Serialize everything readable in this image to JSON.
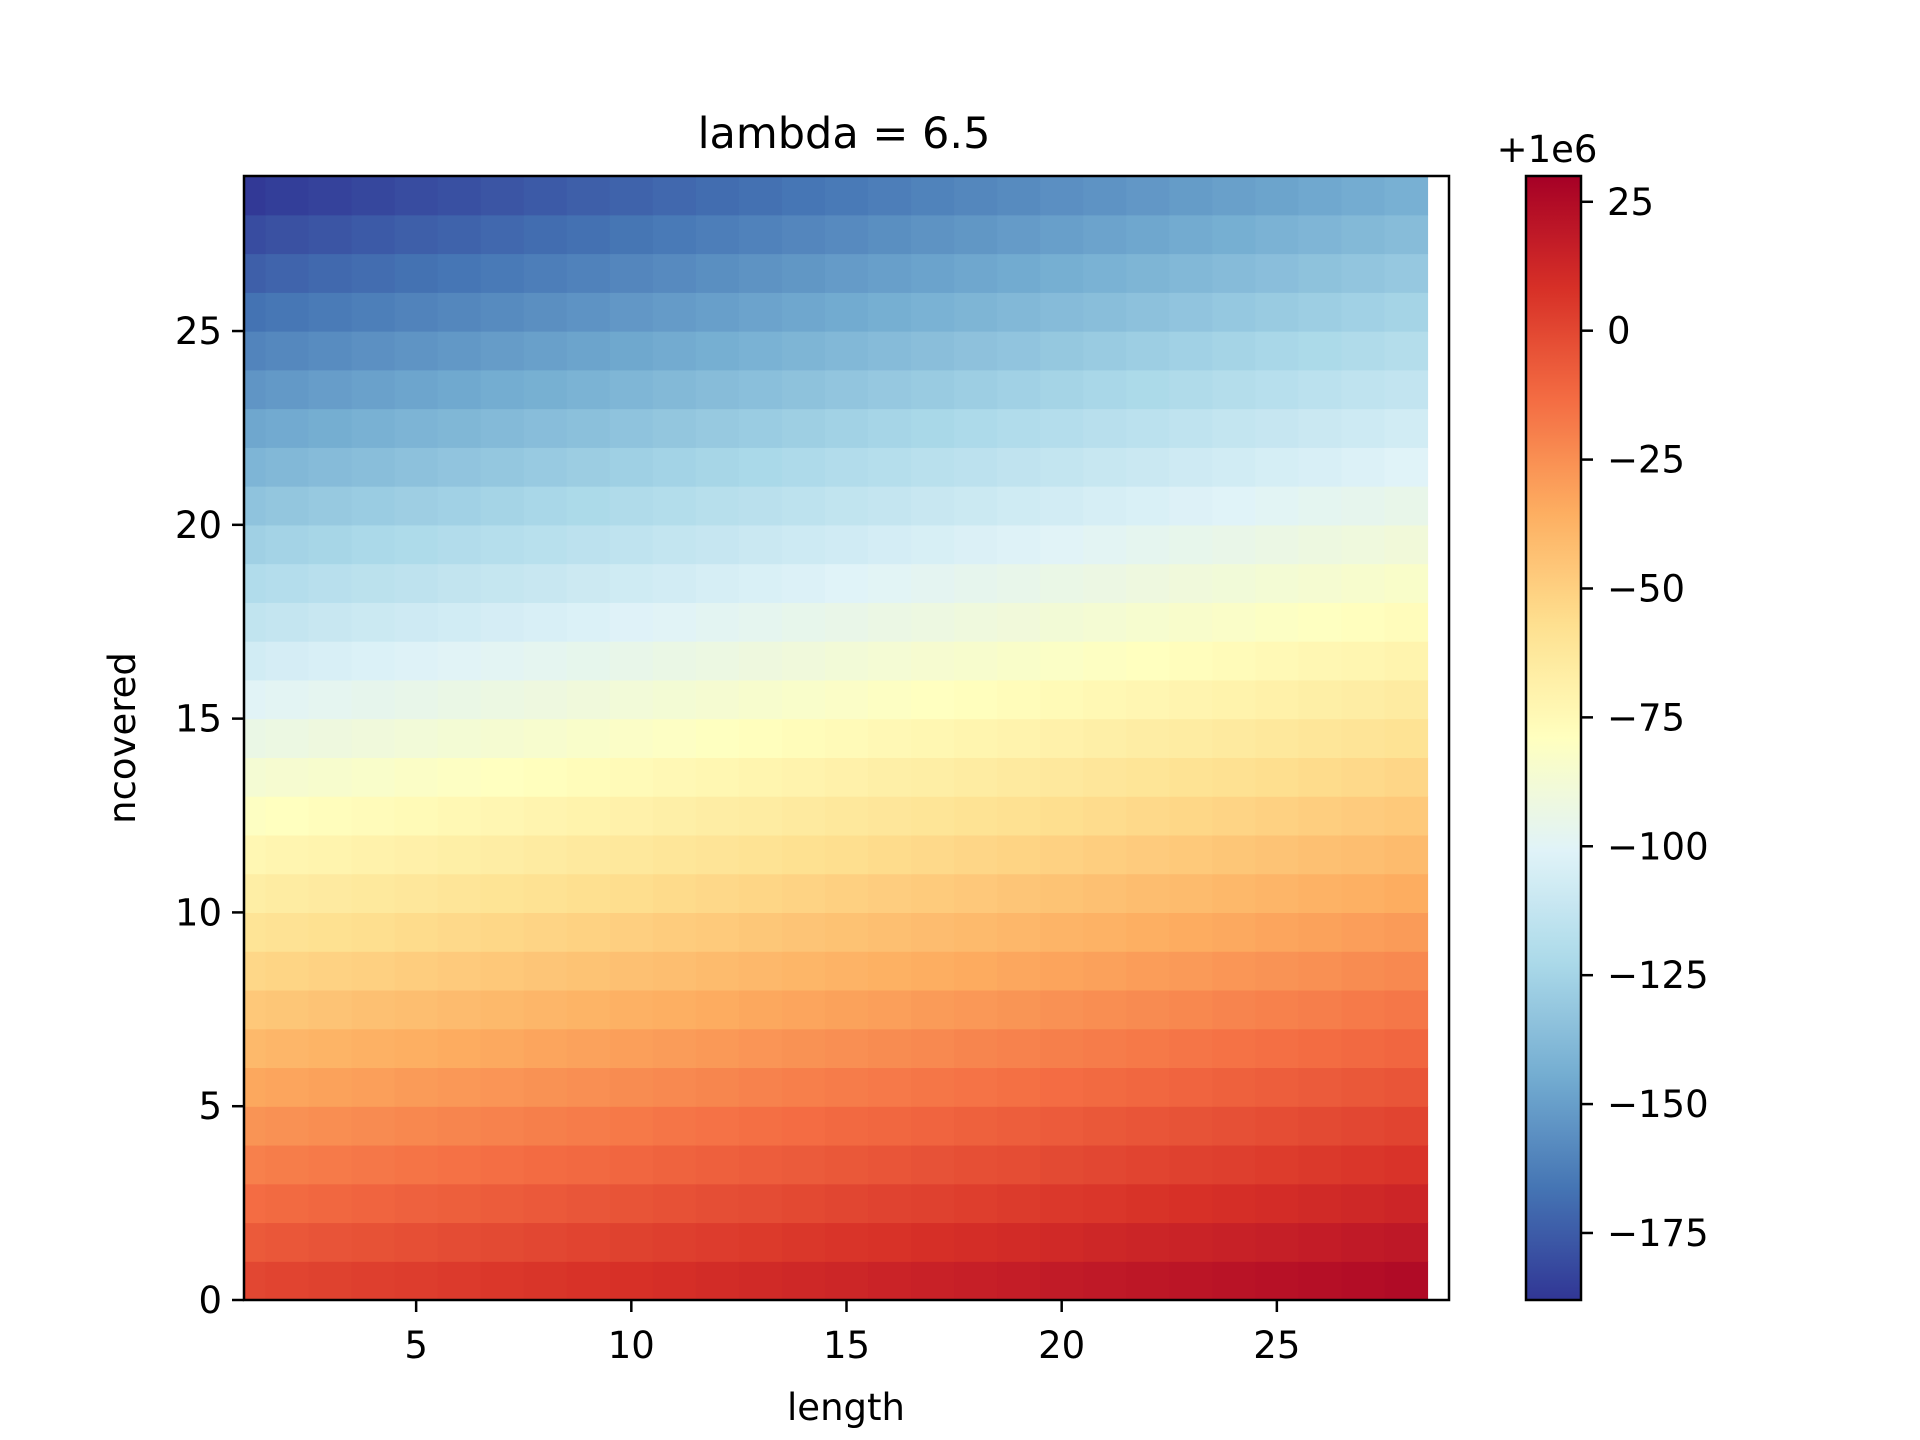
{
  "chart_data": {
    "type": "heatmap",
    "title": "lambda = 6.5",
    "xlabel": "length",
    "ylabel": "ncovered",
    "x_range": [
      1,
      29
    ],
    "y_range": [
      0,
      29
    ],
    "x_ticks": [
      5,
      10,
      15,
      20,
      25
    ],
    "y_ticks": [
      0,
      5,
      10,
      15,
      20,
      25
    ],
    "colormap": "RdYlBu_r",
    "colorbar": {
      "offset_label": "+1e6",
      "range": [
        -188,
        30
      ],
      "ticks": [
        25,
        0,
        -25,
        -50,
        -75,
        -100,
        -125,
        -150,
        -175
      ],
      "tick_labels": [
        "25",
        "0",
        "−25",
        "−50",
        "−75",
        "−100",
        "−125",
        "−150",
        "−175"
      ]
    },
    "value_model": {
      "description": "cell value (offset from 1e6) approx. = a + b*length + c*ncovered",
      "corner_values": {
        "length1_ncovered0": 0,
        "length28_ncovered0": 25,
        "length1_ncovered28": -187,
        "length28_ncovered28": -143
      }
    },
    "grid": false
  }
}
